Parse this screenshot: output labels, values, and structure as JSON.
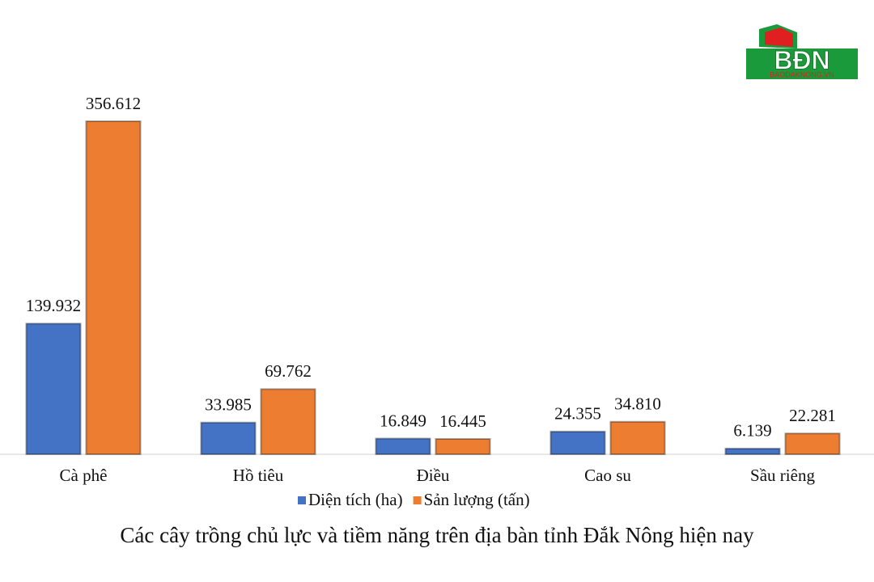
{
  "chart_data": {
    "type": "bar",
    "title": "Các cây trồng chủ lực và tiềm năng trên địa bàn tỉnh Đắk Nông hiện nay",
    "categories": [
      "Cà phê",
      "Hồ tiêu",
      "Điều",
      "Cao su",
      "Sầu riêng"
    ],
    "series": [
      {
        "name": "Diện tích (ha)",
        "color": "#4472c4",
        "values": [
          139932,
          33985,
          16849,
          24355,
          6139
        ],
        "value_labels": [
          "139.932",
          "33.985",
          "16.849",
          "24.355",
          "6.139"
        ]
      },
      {
        "name": "Sản lượng (tấn)",
        "color": "#ed7d31",
        "values": [
          356612,
          69762,
          16445,
          34810,
          22281
        ],
        "value_labels": [
          "356.612",
          "69.762",
          "16.445",
          "34.810",
          "22.281"
        ]
      }
    ],
    "legend": "bottom"
  },
  "logo": {
    "text": "BĐN",
    "url": "BAODAKNONG.VN"
  }
}
